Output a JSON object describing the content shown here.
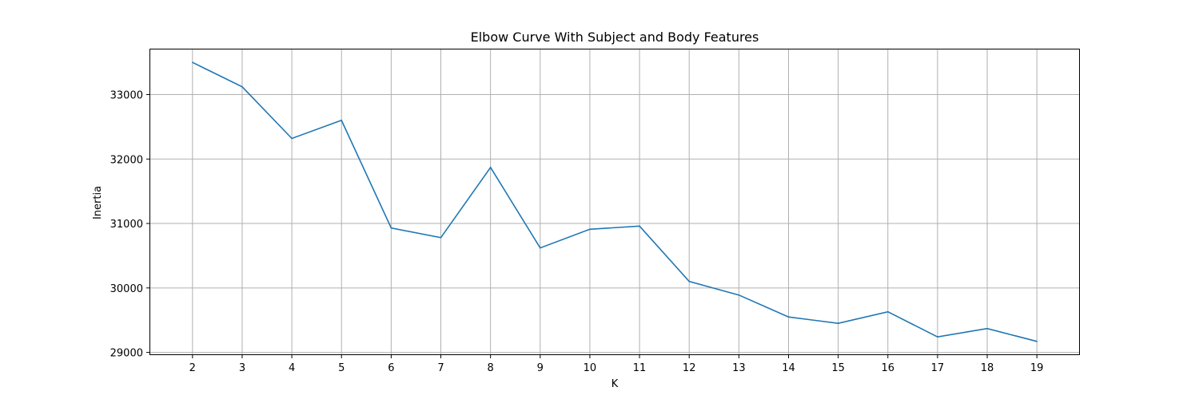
{
  "chart_data": {
    "type": "line",
    "title": "Elbow Curve With Subject and Body Features",
    "xlabel": "K",
    "ylabel": "Inertia",
    "x": [
      2,
      3,
      4,
      5,
      6,
      7,
      8,
      9,
      10,
      11,
      12,
      13,
      14,
      15,
      16,
      17,
      18,
      19
    ],
    "x_tick_labels": [
      "2",
      "3",
      "4",
      "5",
      "6",
      "7",
      "8",
      "9",
      "10",
      "11",
      "12",
      "13",
      "14",
      "15",
      "16",
      "17",
      "18",
      "19"
    ],
    "y_ticks": [
      29000,
      30000,
      31000,
      32000,
      33000
    ],
    "y_tick_labels": [
      "29000",
      "30000",
      "31000",
      "32000",
      "33000"
    ],
    "xlim": [
      1.15,
      19.85
    ],
    "ylim": [
      28970,
      33700
    ],
    "grid": true,
    "series": [
      {
        "color": "#1f77b4",
        "values": [
          33500,
          33120,
          32320,
          32600,
          30930,
          30780,
          31870,
          30620,
          30910,
          30960,
          30100,
          29890,
          29550,
          29450,
          29630,
          29240,
          29370,
          29170
        ]
      }
    ]
  }
}
